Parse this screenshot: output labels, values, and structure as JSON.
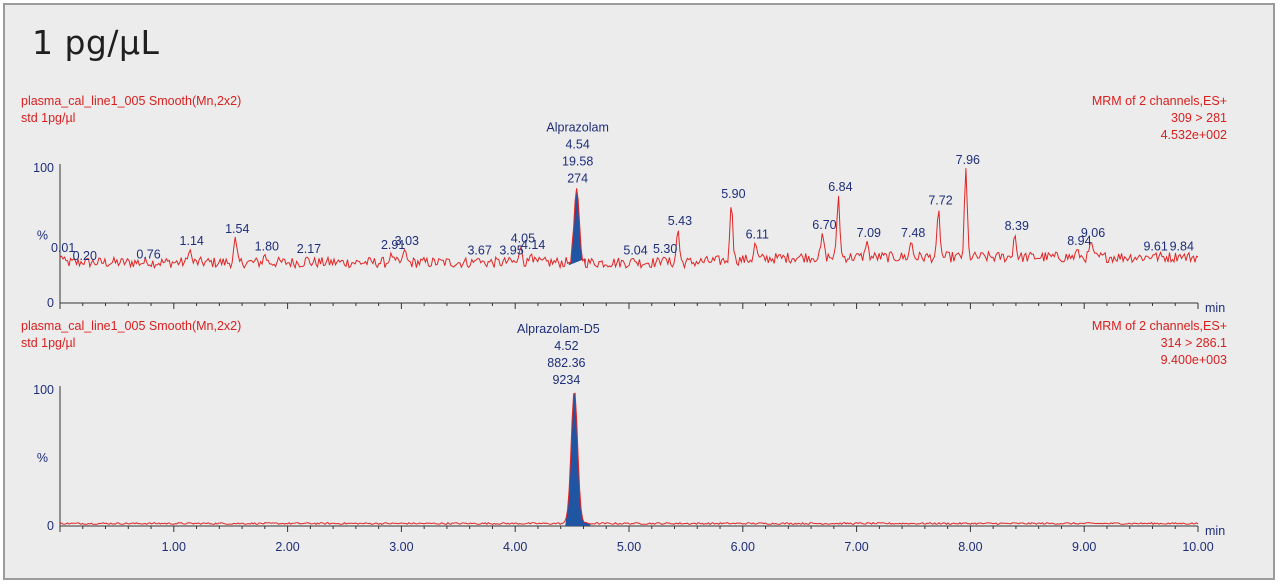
{
  "title": "1 pg/µL",
  "colors": {
    "trace": "#e02626",
    "peak_fill": "#1f55a3",
    "label_text": "#1e2e7a",
    "header_text": "#d82020",
    "axis": "#333333",
    "background": "#ececec"
  },
  "chart_data": [
    {
      "type": "line",
      "sample_name": "plasma_cal_line1_005  Smooth(Mn,2x2)",
      "sample_desc": "std 1pg/µl",
      "channel_info": "MRM of 2 channels,ES+",
      "transition": "309 > 281",
      "intensity": "4.532e+002",
      "ylabel": "%",
      "xlabel": "min",
      "xlim": [
        0,
        10
      ],
      "ylim": [
        0,
        100
      ],
      "y_ticks": [
        "0",
        "100"
      ],
      "x_ticks": [],
      "integrated_peak": {
        "compound": "Alprazolam",
        "rt": "4.54",
        "area": "19.58",
        "height": "274",
        "start": 4.47,
        "end": 4.62,
        "apex": 4.54,
        "apex_y": 85
      },
      "peak_labels": [
        {
          "x": 0.01,
          "y": 35,
          "label": "0.01"
        },
        {
          "x": 0.2,
          "y": 29,
          "label": "0.20"
        },
        {
          "x": 0.76,
          "y": 30,
          "label": "0.76"
        },
        {
          "x": 1.14,
          "y": 40,
          "label": "1.14"
        },
        {
          "x": 1.54,
          "y": 49,
          "label": "1.54"
        },
        {
          "x": 1.8,
          "y": 36,
          "label": "1.80"
        },
        {
          "x": 2.17,
          "y": 34,
          "label": "2.17"
        },
        {
          "x": 2.91,
          "y": 37,
          "label": "2.91"
        },
        {
          "x": 3.03,
          "y": 40,
          "label": "3.03"
        },
        {
          "x": 3.67,
          "y": 33,
          "label": "3.67"
        },
        {
          "x": 3.95,
          "y": 33,
          "label": "3.95"
        },
        {
          "x": 4.05,
          "y": 42,
          "label": "4.05"
        },
        {
          "x": 4.14,
          "y": 37,
          "label": "4.14"
        },
        {
          "x": 5.04,
          "y": 33,
          "label": "5.04"
        },
        {
          "x": 5.3,
          "y": 34,
          "label": "5.30"
        },
        {
          "x": 5.43,
          "y": 55,
          "label": "5.43"
        },
        {
          "x": 5.9,
          "y": 75,
          "label": "5.90"
        },
        {
          "x": 6.11,
          "y": 45,
          "label": "6.11"
        },
        {
          "x": 6.7,
          "y": 52,
          "label": "6.70"
        },
        {
          "x": 6.84,
          "y": 80,
          "label": "6.84"
        },
        {
          "x": 7.09,
          "y": 46,
          "label": "7.09"
        },
        {
          "x": 7.48,
          "y": 46,
          "label": "7.48"
        },
        {
          "x": 7.72,
          "y": 70,
          "label": "7.72"
        },
        {
          "x": 7.96,
          "y": 100,
          "label": "7.96"
        },
        {
          "x": 8.39,
          "y": 51,
          "label": "8.39"
        },
        {
          "x": 8.94,
          "y": 40,
          "label": "8.94"
        },
        {
          "x": 9.06,
          "y": 46,
          "label": "9.06"
        },
        {
          "x": 9.61,
          "y": 36,
          "label": "9.61"
        },
        {
          "x": 9.84,
          "y": 36,
          "label": "9.84"
        }
      ]
    },
    {
      "type": "line",
      "sample_name": "plasma_cal_line1_005  Smooth(Mn,2x2)",
      "sample_desc": "std 1pg/µl",
      "channel_info": "MRM of 2 channels,ES+",
      "transition": "314 > 286.1",
      "intensity": "9.400e+003",
      "ylabel": "%",
      "xlabel": "min",
      "xlim": [
        0,
        10
      ],
      "ylim": [
        0,
        100
      ],
      "y_ticks": [
        "0",
        "100"
      ],
      "x_ticks": [
        "1.00",
        "2.00",
        "3.00",
        "4.00",
        "5.00",
        "6.00",
        "7.00",
        "8.00",
        "9.00",
        "10.00"
      ],
      "integrated_peak": {
        "compound": "Alprazolam-D5",
        "rt": "4.52",
        "area": "882.36",
        "height": "9234",
        "start": 4.44,
        "end": 4.66,
        "apex": 4.52,
        "apex_y": 100
      },
      "peak_labels": []
    }
  ]
}
